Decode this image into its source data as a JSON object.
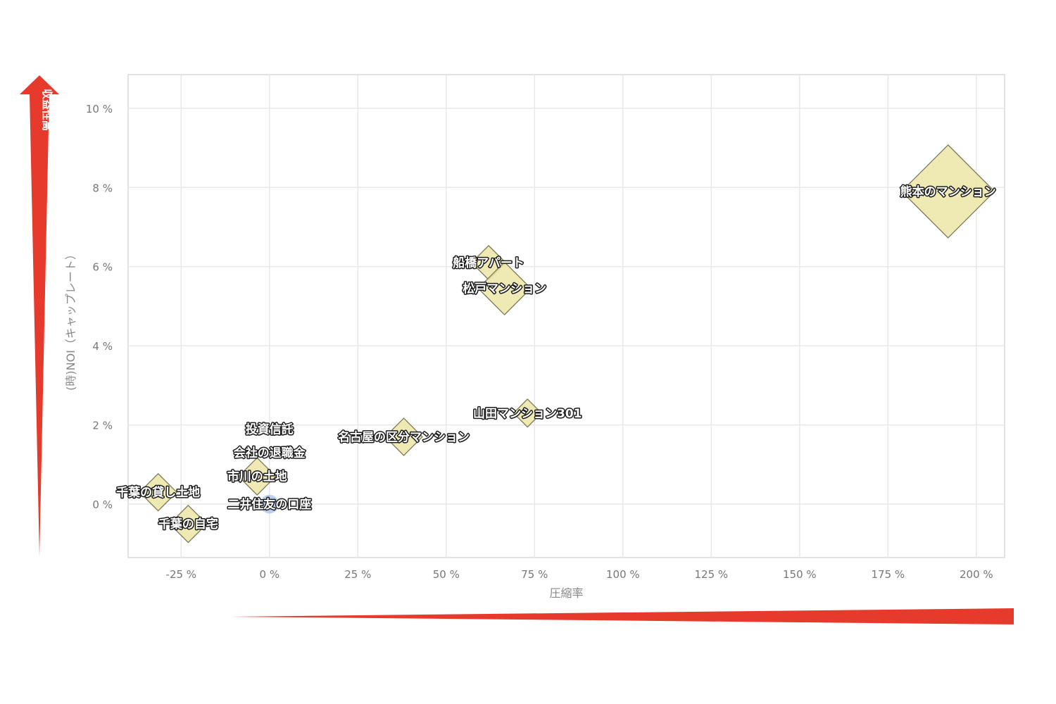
{
  "colors": {
    "accent_arrow": "#e53a2c",
    "marker_fill": "#ece6a6",
    "marker_stroke": "#7d7a58",
    "circle_fill": "#a9c3ea",
    "grid": "#e8e8e8",
    "frame": "#d8d8d8"
  },
  "high_yield_label": "収益性高",
  "chart_data": {
    "type": "scatter",
    "xlabel": "圧縮率",
    "ylabel": "(時)NOI（キャップレート）",
    "xlim": [
      -40,
      208
    ],
    "ylim": [
      -1.35,
      10.85
    ],
    "x_ticks": [
      -25,
      0,
      25,
      50,
      75,
      100,
      125,
      150,
      175,
      200
    ],
    "y_ticks": [
      0,
      2,
      4,
      6,
      8,
      10
    ],
    "x_tick_labels": [
      "-25 %",
      "0 %",
      "25 %",
      "50 %",
      "75 %",
      "100 %",
      "125 %",
      "150 %",
      "175 %",
      "200 %"
    ],
    "y_tick_labels": [
      "0 %",
      "2 %",
      "4 %",
      "6 %",
      "8 %",
      "10 %"
    ],
    "grid": true,
    "points": [
      {
        "label": "熊本のマンション",
        "x": 192,
        "y": 7.9,
        "size": 3.0,
        "marker": "diamond"
      },
      {
        "label": "船橋アパート",
        "x": 62,
        "y": 6.1,
        "size": 1.1,
        "marker": "diamond"
      },
      {
        "label": "松戸マンション",
        "x": 66.5,
        "y": 5.45,
        "size": 1.7,
        "marker": "diamond"
      },
      {
        "label": "山田マンション301",
        "x": 73,
        "y": 2.3,
        "size": 0.9,
        "marker": "diamond"
      },
      {
        "label": "名古屋の区分マンション",
        "x": 38,
        "y": 1.7,
        "size": 1.2,
        "marker": "diamond"
      },
      {
        "label": "投資信託",
        "x": 0,
        "y": 1.9,
        "size": 0,
        "marker": "none"
      },
      {
        "label": "会社の退職金",
        "x": 0,
        "y": 1.3,
        "size": 0,
        "marker": "none"
      },
      {
        "label": "市川の土地",
        "x": -3.5,
        "y": 0.7,
        "size": 1.2,
        "marker": "diamond"
      },
      {
        "label": "二井住友の口座",
        "x": 0,
        "y": 0,
        "size": 0.6,
        "marker": "circle"
      },
      {
        "label": "千葉の貸し土地",
        "x": -31.5,
        "y": 0.3,
        "size": 1.2,
        "marker": "diamond"
      },
      {
        "label": "千葉の自宅",
        "x": -23,
        "y": -0.5,
        "size": 1.2,
        "marker": "diamond"
      }
    ]
  }
}
